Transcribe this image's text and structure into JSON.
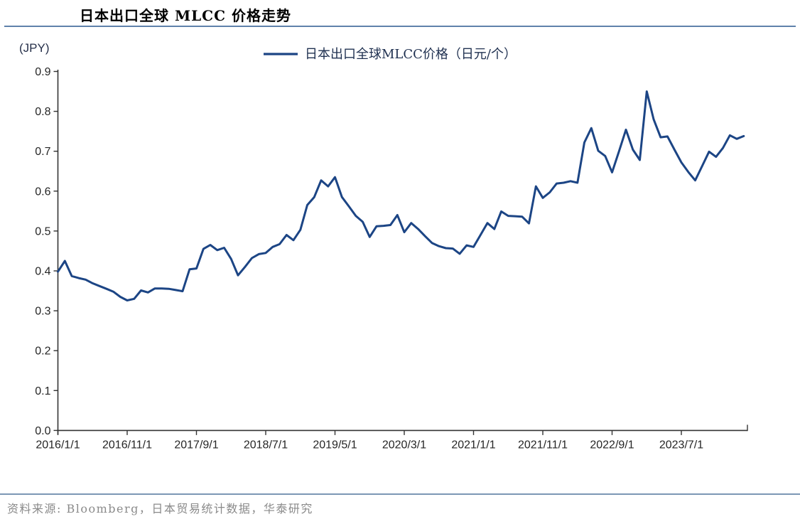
{
  "header": {
    "title": "日本出口全球 MLCC 价格走势"
  },
  "footer": {
    "source_text": "资料来源: Bloomberg，日本贸易统计数据，华泰研究"
  },
  "chart_data": {
    "type": "line",
    "title": "日本出口全球 MLCC 价格走势",
    "unit_label": "(JPY)",
    "legend_position": "top-center",
    "grid": false,
    "line_color": "#1c4585",
    "axis_color": "#333333",
    "tick_label_color": "#262626",
    "legend_text_color": "#1f3050",
    "ylim": [
      0.0,
      0.9
    ],
    "y_ticks": [
      0.0,
      0.1,
      0.2,
      0.3,
      0.4,
      0.5,
      0.6,
      0.7,
      0.8,
      0.9
    ],
    "x_tick_labels": [
      "2016/1/1",
      "2016/11/1",
      "2017/9/1",
      "2018/7/1",
      "2019/5/1",
      "2020/3/1",
      "2021/1/1",
      "2021/11/1",
      "2022/9/1",
      "2023/7/1"
    ],
    "x_tick_every_n_months": 10,
    "x": [
      "2016/1",
      "2016/2",
      "2016/3",
      "2016/4",
      "2016/5",
      "2016/6",
      "2016/7",
      "2016/8",
      "2016/9",
      "2016/10",
      "2016/11",
      "2016/12",
      "2017/1",
      "2017/2",
      "2017/3",
      "2017/4",
      "2017/5",
      "2017/6",
      "2017/7",
      "2017/8",
      "2017/9",
      "2017/10",
      "2017/11",
      "2017/12",
      "2018/1",
      "2018/2",
      "2018/3",
      "2018/4",
      "2018/5",
      "2018/6",
      "2018/7",
      "2018/8",
      "2018/9",
      "2018/10",
      "2018/11",
      "2018/12",
      "2019/1",
      "2019/2",
      "2019/3",
      "2019/4",
      "2019/5",
      "2019/6",
      "2019/7",
      "2019/8",
      "2019/9",
      "2019/10",
      "2019/11",
      "2019/12",
      "2020/1",
      "2020/2",
      "2020/3",
      "2020/4",
      "2020/5",
      "2020/6",
      "2020/7",
      "2020/8",
      "2020/9",
      "2020/10",
      "2020/11",
      "2020/12",
      "2021/1",
      "2021/2",
      "2021/3",
      "2021/4",
      "2021/5",
      "2021/6",
      "2021/7",
      "2021/8",
      "2021/9",
      "2021/10",
      "2021/11",
      "2021/12",
      "2022/1",
      "2022/2",
      "2022/3",
      "2022/4",
      "2022/5",
      "2022/6",
      "2022/7",
      "2022/8",
      "2022/9",
      "2022/10",
      "2022/11",
      "2022/12",
      "2023/1",
      "2023/2",
      "2023/3",
      "2023/4",
      "2023/5",
      "2023/6",
      "2023/7",
      "2023/8",
      "2023/9",
      "2023/10",
      "2023/11",
      "2023/12",
      "2024/1",
      "2024/2",
      "2024/3",
      "2024/4"
    ],
    "series": [
      {
        "name": "日本出口全球MLCC价格（日元/个）",
        "values": [
          0.398,
          0.425,
          0.387,
          0.382,
          0.378,
          0.369,
          0.362,
          0.355,
          0.348,
          0.335,
          0.326,
          0.33,
          0.351,
          0.346,
          0.356,
          0.356,
          0.355,
          0.352,
          0.349,
          0.404,
          0.406,
          0.455,
          0.465,
          0.452,
          0.458,
          0.43,
          0.389,
          0.41,
          0.432,
          0.442,
          0.445,
          0.46,
          0.467,
          0.49,
          0.477,
          0.503,
          0.565,
          0.585,
          0.627,
          0.612,
          0.635,
          0.585,
          0.562,
          0.538,
          0.523,
          0.485,
          0.512,
          0.513,
          0.515,
          0.54,
          0.497,
          0.52,
          0.505,
          0.487,
          0.47,
          0.462,
          0.457,
          0.456,
          0.443,
          0.464,
          0.46,
          0.49,
          0.52,
          0.505,
          0.549,
          0.538,
          0.537,
          0.536,
          0.519,
          0.612,
          0.583,
          0.597,
          0.619,
          0.621,
          0.625,
          0.621,
          0.722,
          0.758,
          0.701,
          0.688,
          0.647,
          0.7,
          0.754,
          0.704,
          0.678,
          0.85,
          0.78,
          0.735,
          0.737,
          0.704,
          0.672,
          0.648,
          0.627,
          0.663,
          0.699,
          0.686,
          0.708,
          0.74,
          0.731,
          0.738
        ]
      }
    ]
  }
}
